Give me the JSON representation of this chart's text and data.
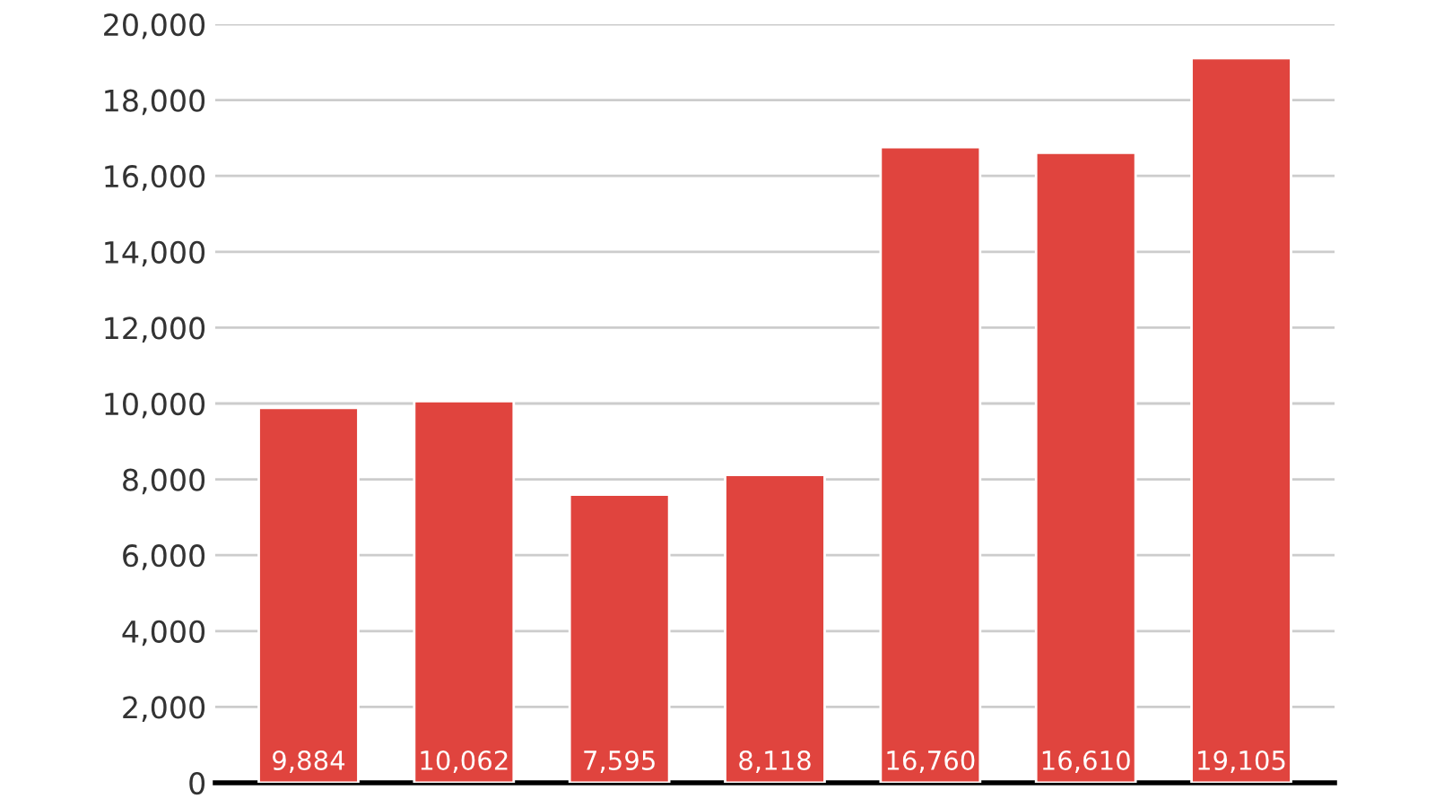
{
  "chart_data": {
    "type": "bar",
    "categories": [
      null,
      null,
      null,
      null,
      null,
      null,
      null
    ],
    "values": [
      9884,
      10062,
      7595,
      8118,
      16760,
      16610,
      19105
    ],
    "value_labels": [
      "9,884",
      "10,062",
      "7,595",
      "8,118",
      "16,760",
      "16,610",
      "19,105"
    ],
    "color": "#e0443e",
    "grid": "y",
    "legend": false,
    "tick_labels": "y",
    "ylim": [
      0,
      20000
    ],
    "yticks": [
      {
        "value": 0,
        "label": "0"
      },
      {
        "value": 2000,
        "label": "2,000"
      },
      {
        "value": 4000,
        "label": "4,000"
      },
      {
        "value": 6000,
        "label": "6,000"
      },
      {
        "value": 8000,
        "label": "8,000"
      },
      {
        "value": 10000,
        "label": "10,000"
      },
      {
        "value": 12000,
        "label": "12,000"
      },
      {
        "value": 14000,
        "label": "14,000"
      },
      {
        "value": 16000,
        "label": "16,000"
      },
      {
        "value": 18000,
        "label": "18,000"
      },
      {
        "value": 20000,
        "label": "20,000"
      }
    ]
  }
}
